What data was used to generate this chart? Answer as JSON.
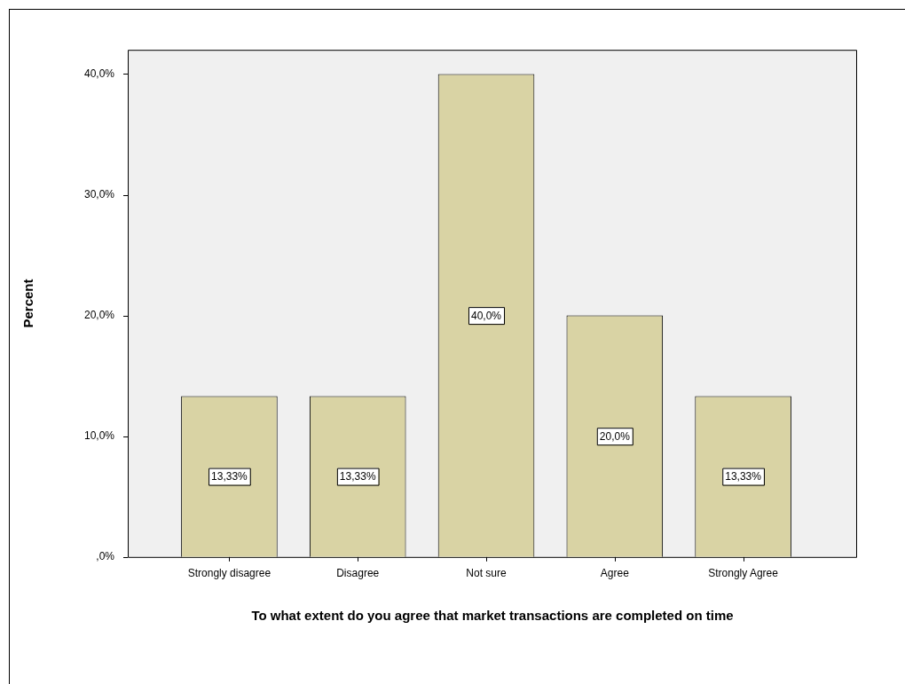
{
  "chart_data": {
    "type": "bar",
    "xlabel": "To what extent do you agree that market transactions are completed on time",
    "ylabel": "Percent",
    "categories": [
      "Strongly disagree",
      "Disagree",
      "Not sure",
      "Agree",
      "Strongly Agree"
    ],
    "values": [
      13.33,
      13.33,
      40.0,
      20.0,
      13.33
    ],
    "value_labels": [
      "13,33%",
      "13,33%",
      "40,0%",
      "20,0%",
      "13,33%"
    ],
    "color": "#d9d3a4",
    "ylim": [
      0,
      42
    ],
    "yticks": [
      {
        "value": 0,
        "label": ",0%"
      },
      {
        "value": 10,
        "label": "10,0%"
      },
      {
        "value": 20,
        "label": "20,0%"
      },
      {
        "value": 30,
        "label": "30,0%"
      },
      {
        "value": 40,
        "label": "40,0%"
      }
    ],
    "grid": false,
    "legend": false
  }
}
